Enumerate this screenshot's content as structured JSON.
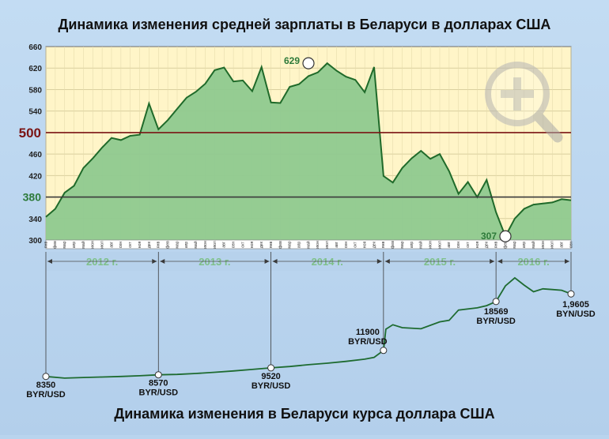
{
  "chart_data": [
    {
      "type": "area",
      "title": "Динамика изменения средней зарплаты в Беларуси в долларах США",
      "xlabel": "",
      "ylabel": "",
      "ylim": [
        300,
        660
      ],
      "yticks": [
        "300",
        "340",
        "380",
        "420",
        "460",
        "500",
        "540",
        "580",
        "620",
        "660"
      ],
      "month_labels": [
        "янв",
        "фев",
        "мар",
        "апр",
        "май",
        "июн",
        "июл",
        "авг",
        "сен",
        "окт",
        "ноя",
        "дек"
      ],
      "year_labels": [
        "2012 г.",
        "2013 г.",
        "2014 г.",
        "2015 г.",
        "2016 г."
      ],
      "grid": true,
      "colors": {
        "fill": "#8fc98f",
        "line": "#1f6a2a",
        "plot_bg": "#fff5c8",
        "ref_500": "#7a1414",
        "ref_380": "#3a3a3a",
        "label_green": "#2d7a3a",
        "label_red": "#7a1414"
      },
      "reference_lines": [
        {
          "value": 500,
          "label": "500"
        },
        {
          "value": 380,
          "label": "380"
        }
      ],
      "annotations": [
        {
          "x": "2014-05",
          "value": 629,
          "label": "629"
        },
        {
          "x": "2016-02",
          "value": 307,
          "label": "307"
        }
      ],
      "series": [
        {
          "x": [
            "2012-01",
            "2012-02",
            "2012-03",
            "2012-04",
            "2012-05",
            "2012-06",
            "2012-07",
            "2012-08",
            "2012-09",
            "2012-10",
            "2012-11",
            "2012-12",
            "2013-01",
            "2013-02",
            "2013-03",
            "2013-04",
            "2013-05",
            "2013-06",
            "2013-07",
            "2013-08",
            "2013-09",
            "2013-10",
            "2013-11",
            "2013-12",
            "2014-01",
            "2014-02",
            "2014-03",
            "2014-04",
            "2014-05",
            "2014-06",
            "2014-07",
            "2014-08",
            "2014-09",
            "2014-10",
            "2014-11",
            "2014-12",
            "2015-01",
            "2015-02",
            "2015-03",
            "2015-04",
            "2015-05",
            "2015-06",
            "2015-07",
            "2015-08",
            "2015-09",
            "2015-10",
            "2015-11",
            "2015-12",
            "2016-01",
            "2016-02",
            "2016-03",
            "2016-04",
            "2016-05",
            "2016-06",
            "2016-07",
            "2016-08",
            "2016-09"
          ],
          "values": [
            343,
            358,
            388,
            401,
            434,
            452,
            472,
            490,
            486,
            494,
            496,
            554,
            506,
            523,
            544,
            565,
            576,
            591,
            616,
            621,
            595,
            597,
            577,
            622,
            556,
            555,
            585,
            590,
            605,
            612,
            629,
            615,
            604,
            598,
            575,
            622,
            419,
            407,
            434,
            452,
            466,
            451,
            460,
            428,
            386,
            408,
            380,
            412,
            352,
            307,
            340,
            358,
            366,
            368,
            370,
            376,
            374
          ]
        }
      ]
    },
    {
      "type": "line",
      "title": "Динамика изменения в Беларуси курса доллара США",
      "xlabel": "",
      "ylabel": "",
      "unit": "BYR/USD",
      "annotations": [
        {
          "x": "2012-01",
          "value": 8350,
          "label": "8350",
          "unit": "BYR/USD"
        },
        {
          "x": "2013-01",
          "value": 8570,
          "label": "8570",
          "unit": "BYR/USD"
        },
        {
          "x": "2014-01",
          "value": 9520,
          "label": "9520",
          "unit": "BYR/USD"
        },
        {
          "x": "2015-01",
          "value": 11900,
          "label": "11900",
          "unit": "BYR/USD"
        },
        {
          "x": "2016-01",
          "value": 18569,
          "label": "18569",
          "unit": "BYR/USD"
        },
        {
          "x": "2016-09",
          "value": 19605,
          "label": "1,9605",
          "unit": "BYN/USD"
        }
      ],
      "series": [
        {
          "x": [
            "2012-01",
            "2012-03",
            "2012-05",
            "2012-07",
            "2012-09",
            "2012-11",
            "2013-01",
            "2013-03",
            "2013-05",
            "2013-07",
            "2013-09",
            "2013-11",
            "2014-01",
            "2014-03",
            "2014-05",
            "2014-07",
            "2014-09",
            "2014-11",
            "2014-12",
            "2015-01",
            "2015-01b",
            "2015-02",
            "2015-03",
            "2015-05",
            "2015-07",
            "2015-08",
            "2015-09",
            "2015-11",
            "2015-12",
            "2016-01",
            "2016-02",
            "2016-03",
            "2016-04",
            "2016-05",
            "2016-06",
            "2016-07",
            "2016-08",
            "2016-09"
          ],
          "values": [
            8350,
            8120,
            8200,
            8270,
            8340,
            8440,
            8570,
            8620,
            8750,
            8920,
            9100,
            9300,
            9520,
            9700,
            9950,
            10150,
            10400,
            10700,
            10950,
            11900,
            14800,
            15400,
            15000,
            14850,
            15800,
            16000,
            17400,
            17700,
            18000,
            18569,
            20700,
            21800,
            20800,
            19900,
            20300,
            20200,
            20100,
            19605
          ]
        }
      ]
    }
  ]
}
